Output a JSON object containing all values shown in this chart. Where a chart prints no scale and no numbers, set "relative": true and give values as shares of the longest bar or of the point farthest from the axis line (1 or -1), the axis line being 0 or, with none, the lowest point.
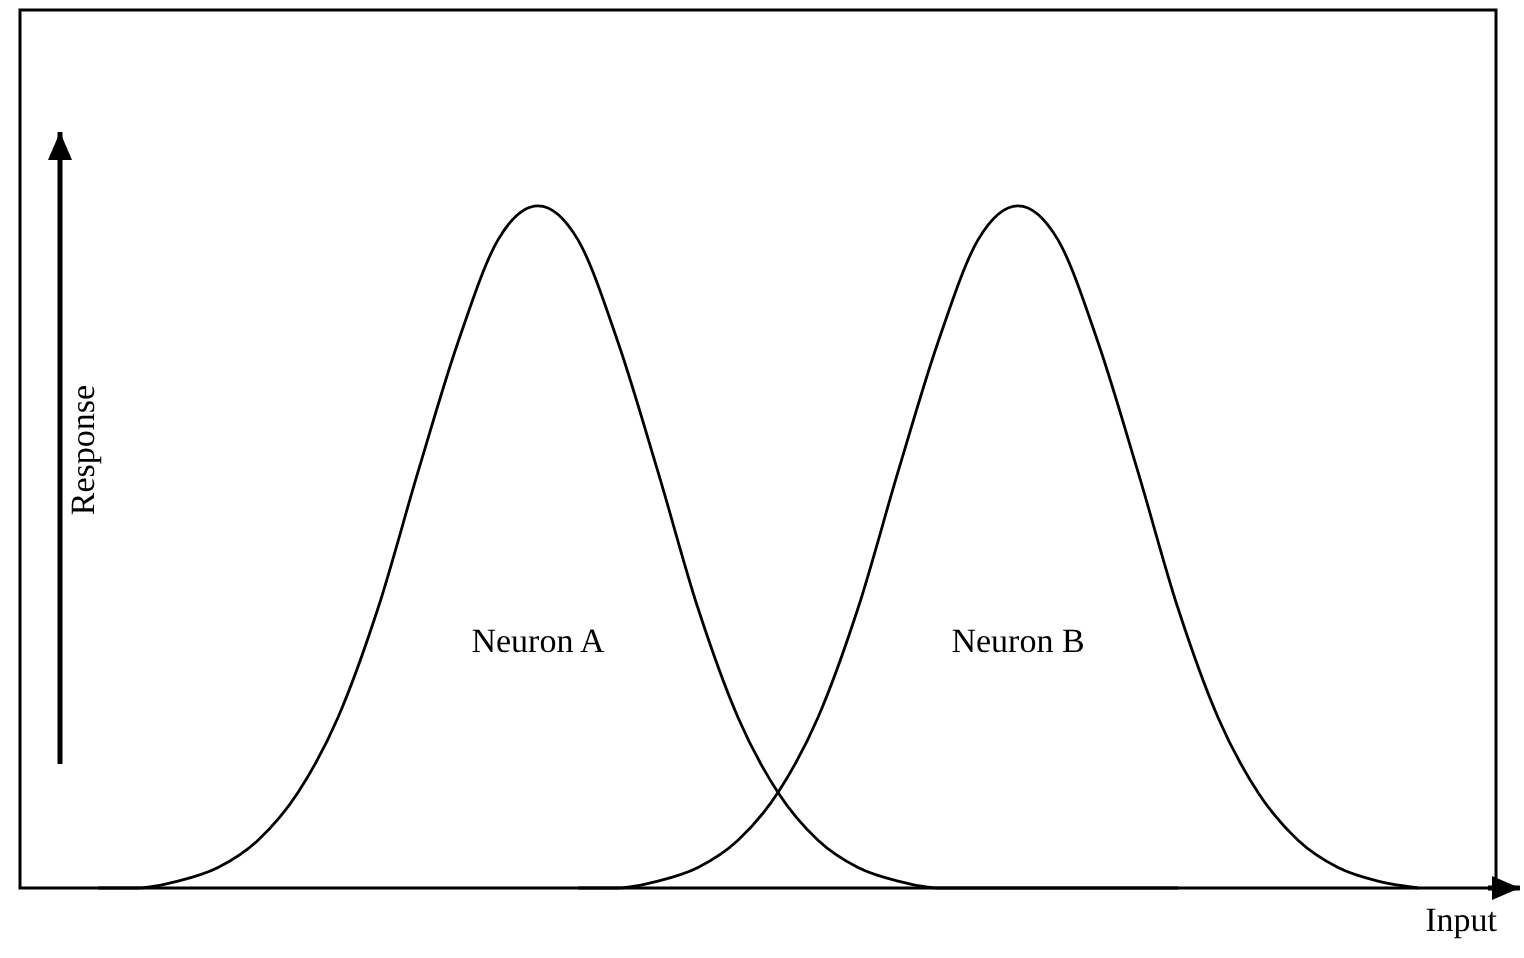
{
  "chart_data": {
    "type": "line",
    "relative": true,
    "xlabel": "Input",
    "ylabel": "Response",
    "marker": "none",
    "line_style": "solid",
    "categories": [
      null,
      null,
      null,
      null,
      null,
      null,
      null,
      null,
      null,
      null,
      null,
      null,
      null,
      null,
      null,
      null,
      null,
      null,
      null,
      null,
      null,
      null,
      null,
      null,
      null,
      null,
      null,
      null,
      null,
      null,
      null,
      null,
      null,
      null,
      null,
      null
    ],
    "series": [
      {
        "name": "Neuron A",
        "color": "#000000",
        "values": [
          null,
          0,
          0,
          0.01,
          0.03,
          0.07,
          0.14,
          0.25,
          0.41,
          0.61,
          0.8,
          0.95,
          1,
          0.95,
          0.8,
          0.61,
          0.41,
          0.25,
          0.14,
          0.07,
          0.03,
          0.01,
          0,
          0,
          0,
          0,
          0,
          0,
          0,
          null,
          null,
          null,
          null,
          null,
          null,
          null
        ]
      },
      {
        "name": "Neuron B",
        "color": "#000000",
        "values": [
          null,
          null,
          null,
          null,
          null,
          null,
          null,
          null,
          null,
          null,
          null,
          null,
          null,
          0,
          0,
          0.01,
          0.03,
          0.07,
          0.14,
          0.25,
          0.41,
          0.61,
          0.8,
          0.95,
          1,
          0.95,
          0.8,
          0.61,
          0.41,
          0.25,
          0.14,
          0.07,
          0.03,
          0.01,
          0,
          null
        ]
      }
    ]
  }
}
